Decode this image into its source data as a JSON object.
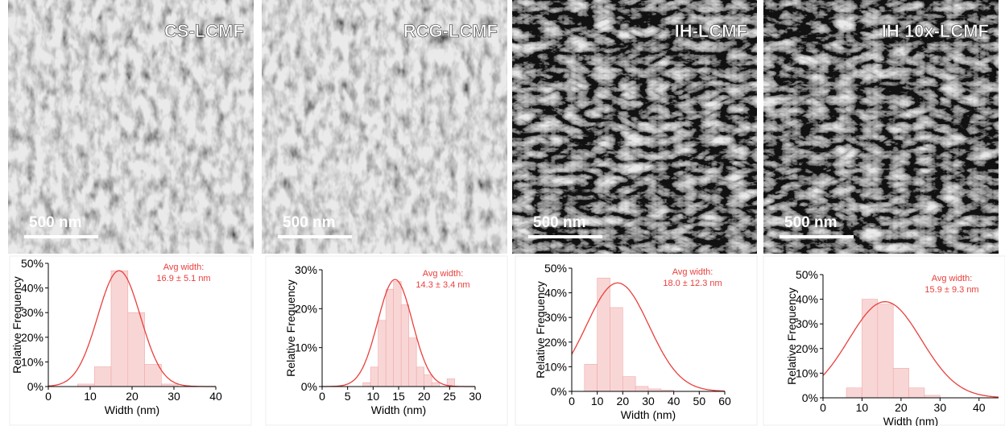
{
  "images": [
    {
      "label": "CS-LCMF",
      "scale_bar": "500 nm"
    },
    {
      "label": "RCG-LCMF",
      "scale_bar": "500 nm"
    },
    {
      "label": "IH-LCMF",
      "scale_bar": "500 nm"
    },
    {
      "label": "IH 10x-LCMF",
      "scale_bar": "500 nm"
    }
  ],
  "chart_data": [
    {
      "type": "histogram",
      "xlabel": "Width (nm)",
      "ylabel": "Relative Frequency",
      "bins": [
        7,
        11,
        15,
        19,
        23,
        27,
        31
      ],
      "values": [
        1,
        8,
        47,
        30,
        9,
        1
      ],
      "color": "#f9d6d6",
      "xlim": [
        0,
        40
      ],
      "xticks": [
        0,
        10,
        20,
        30,
        40
      ],
      "ylim": [
        0,
        50
      ],
      "yticks": [
        {
          "value": 0,
          "label": "0%"
        },
        {
          "value": 10,
          "label": "10%"
        },
        {
          "value": 20,
          "label": "20%"
        },
        {
          "value": 30,
          "label": "30%"
        },
        {
          "value": 40,
          "label": "40%"
        },
        {
          "value": 50,
          "label": "50%"
        }
      ],
      "annotation": [
        "Avg width:",
        "16.9 ± 5.1 nm"
      ],
      "fit": {
        "mean": 16.9,
        "sd": 5.1,
        "peak": 47,
        "color": "#e8403c"
      }
    },
    {
      "type": "histogram",
      "xlabel": "Width (nm)",
      "ylabel": "Relative Frequency",
      "bins": [
        8,
        9.5,
        11,
        12.5,
        14,
        15.5,
        17,
        18.5,
        20,
        21.5,
        23,
        24.5,
        26
      ],
      "values": [
        1,
        5,
        17,
        25,
        27,
        21,
        12.5,
        5,
        3,
        1,
        0,
        2
      ],
      "color": "#f9d6d6",
      "xlim": [
        0,
        30
      ],
      "xticks": [
        0,
        5,
        10,
        15,
        20,
        25,
        30
      ],
      "ylim": [
        0,
        30
      ],
      "yticks": [
        {
          "value": 0,
          "label": "0%"
        },
        {
          "value": 10,
          "label": "10%"
        },
        {
          "value": 20,
          "label": "20%"
        },
        {
          "value": 30,
          "label": "30%"
        }
      ],
      "annotation": [
        "Avg width:",
        "14.3 ± 3.4 nm"
      ],
      "fit": {
        "mean": 14.3,
        "sd": 3.4,
        "peak": 27.5,
        "color": "#e8403c"
      }
    },
    {
      "type": "histogram",
      "xlabel": "Width (nm)",
      "ylabel": "Relative Frequency",
      "bins": [
        5,
        10,
        15,
        20,
        25,
        30,
        35,
        40
      ],
      "values": [
        11,
        46,
        34,
        6,
        2,
        1,
        0.5
      ],
      "color": "#f9d6d6",
      "xlim": [
        0,
        60
      ],
      "xticks": [
        0,
        10,
        20,
        30,
        40,
        50,
        60
      ],
      "ylim": [
        0,
        50
      ],
      "yticks": [
        {
          "value": 0,
          "label": "0%"
        },
        {
          "value": 10,
          "label": "10%"
        },
        {
          "value": 20,
          "label": "20%"
        },
        {
          "value": 30,
          "label": "30%"
        },
        {
          "value": 40,
          "label": "40%"
        },
        {
          "value": 50,
          "label": "50%"
        }
      ],
      "annotation": [
        "Avg width:",
        "18.0 ± 12.3 nm"
      ],
      "fit": {
        "mean": 18.0,
        "sd": 12.3,
        "peak": 44,
        "color": "#e8403c"
      }
    },
    {
      "type": "histogram",
      "xlabel": "Width (nm)",
      "ylabel": "Relative Frequency",
      "bins": [
        6,
        10,
        14,
        18,
        22,
        26,
        30
      ],
      "values": [
        4,
        40,
        38,
        12,
        4,
        1
      ],
      "color": "#f9d6d6",
      "xlim": [
        0,
        45
      ],
      "xticks": [
        0,
        10,
        20,
        30,
        40
      ],
      "ylim": [
        0,
        50
      ],
      "yticks": [
        {
          "value": 0,
          "label": "0%"
        },
        {
          "value": 10,
          "label": "10%"
        },
        {
          "value": 20,
          "label": "20%"
        },
        {
          "value": 30,
          "label": "30%"
        },
        {
          "value": 40,
          "label": "40%"
        },
        {
          "value": 50,
          "label": "50%"
        }
      ],
      "annotation": [
        "Avg width:",
        "15.9 ± 9.3 nm"
      ],
      "fit": {
        "mean": 15.9,
        "sd": 9.3,
        "peak": 39,
        "color": "#e8403c"
      }
    }
  ]
}
